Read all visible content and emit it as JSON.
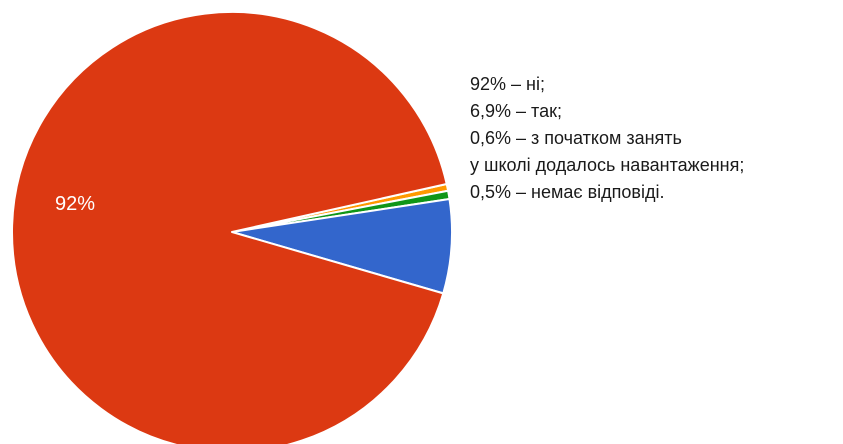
{
  "chart_data": {
    "type": "pie",
    "slices": [
      {
        "label": "ні",
        "value": 92,
        "color": "#dc3912"
      },
      {
        "label": "так",
        "value": 6.9,
        "color": "#3366cc"
      },
      {
        "label": "з початком занять у школі додалось навантаження",
        "value": 0.6,
        "color": "#109618"
      },
      {
        "label": "немає відповіді",
        "value": 0.5,
        "color": "#ff9900"
      }
    ],
    "data_labels": [
      "92%"
    ],
    "legend_lines": [
      "92% – ні;",
      "6,9% – так;",
      "0,6% – з початком занять",
      "у школі додалось навантаження;",
      "0,5% – немає відповіді."
    ]
  }
}
